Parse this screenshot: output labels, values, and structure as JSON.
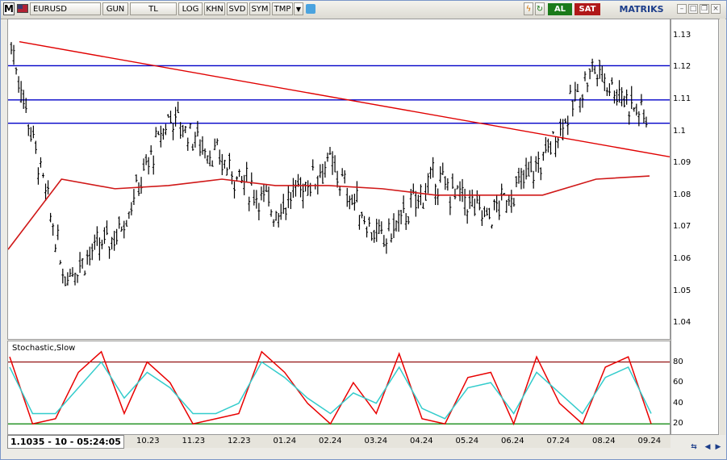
{
  "toolbar": {
    "logo": "M",
    "symbol": "EURUSD",
    "buttons": [
      "GUN",
      "TL",
      "LOG",
      "KHN",
      "SVD",
      "SYM",
      "TMP"
    ],
    "buy_label": "AL",
    "sell_label": "SAT",
    "brand": "MATRIKS"
  },
  "readout": "1.1035 - 10 - 05:24:05",
  "indicator": {
    "title": "Stochastic,Slow"
  },
  "colors": {
    "candles": "#000000",
    "trendline": "#e00000",
    "hlines": "#0000c8",
    "ma": "#d01818",
    "stoch_k": "#e80000",
    "stoch_d": "#33cccc",
    "level_high": "#8b0000",
    "level_low": "#008000"
  },
  "chart_data": [
    {
      "type": "candlestick",
      "x_labels": [
        "10.23",
        "11.23",
        "12.23",
        "01.24",
        "02.24",
        "03.24",
        "04.24",
        "05.24",
        "06.24",
        "07.24",
        "08.24",
        "09.24"
      ],
      "y_ticks": [
        "1.13",
        "1.12",
        "1.11",
        "1.1",
        "1.09",
        "1.08",
        "1.07",
        "1.06",
        "1.05",
        "1.04"
      ],
      "ylim": [
        1.035,
        1.135
      ],
      "horizontal_lines": [
        1.1205,
        1.1098,
        1.1025
      ],
      "trendline": {
        "start": [
          "10.23",
          1.128
        ],
        "end": [
          "09.24",
          1.092
        ]
      },
      "close_path_monthly": [
        1.127,
        1.055,
        1.068,
        1.105,
        1.09,
        1.075,
        1.09,
        1.065,
        1.085,
        1.073,
        1.09,
        1.12,
        1.104
      ],
      "moving_average": [
        1.063,
        1.085,
        1.082,
        1.083,
        1.085,
        1.083,
        1.083,
        1.082,
        1.08,
        1.08,
        1.08,
        1.085,
        1.086
      ]
    },
    {
      "type": "line",
      "title": "Stochastic,Slow",
      "y_ticks": [
        "80",
        "60",
        "40",
        "20"
      ],
      "ylim": [
        10,
        100
      ],
      "levels": [
        80,
        20
      ],
      "series": [
        {
          "values": [
            85,
            20,
            25,
            70,
            90,
            30,
            80,
            60,
            20,
            25,
            30,
            90,
            70,
            40,
            20,
            60,
            30,
            88,
            25,
            20,
            65,
            70,
            20,
            85,
            40,
            20,
            75,
            85,
            20
          ]
        },
        {
          "values": [
            75,
            30,
            30,
            55,
            80,
            45,
            70,
            55,
            30,
            30,
            40,
            80,
            65,
            45,
            30,
            50,
            40,
            75,
            35,
            25,
            55,
            60,
            30,
            70,
            50,
            30,
            65,
            75,
            30
          ]
        }
      ]
    }
  ]
}
